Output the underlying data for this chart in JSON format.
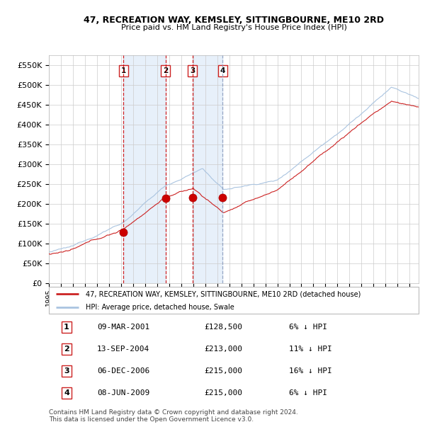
{
  "title": "47, RECREATION WAY, KEMSLEY, SITTINGBOURNE, ME10 2RD",
  "subtitle": "Price paid vs. HM Land Registry's House Price Index (HPI)",
  "footer": "Contains HM Land Registry data © Crown copyright and database right 2024.\nThis data is licensed under the Open Government Licence v3.0.",
  "legend_property": "47, RECREATION WAY, KEMSLEY, SITTINGBOURNE, ME10 2RD (detached house)",
  "legend_hpi": "HPI: Average price, detached house, Swale",
  "transactions": [
    {
      "num": 1,
      "date": "09-MAR-2001",
      "price": 128500,
      "pct": "6% ↓ HPI",
      "decimal_date": 2001.19
    },
    {
      "num": 2,
      "date": "13-SEP-2004",
      "price": 213000,
      "pct": "11% ↓ HPI",
      "decimal_date": 2004.7
    },
    {
      "num": 3,
      "date": "06-DEC-2006",
      "price": 215000,
      "pct": "16% ↓ HPI",
      "decimal_date": 2006.93
    },
    {
      "num": 4,
      "date": "08-JUN-2009",
      "price": 215000,
      "pct": "6% ↓ HPI",
      "decimal_date": 2009.44
    }
  ],
  "ylim": [
    0,
    575000
  ],
  "xlim_start": 1995.0,
  "xlim_end": 2025.75,
  "background_color": "#ffffff",
  "grid_color": "#cccccc",
  "hpi_line_color": "#aac4e0",
  "property_line_color": "#cc2222",
  "marker_color": "#cc0000",
  "yticks": [
    0,
    50000,
    100000,
    150000,
    200000,
    250000,
    300000,
    350000,
    400000,
    450000,
    500000,
    550000
  ],
  "ytick_labels": [
    "£0",
    "£50K",
    "£100K",
    "£150K",
    "£200K",
    "£250K",
    "£300K",
    "£350K",
    "£400K",
    "£450K",
    "£500K",
    "£550K"
  ],
  "xtick_years": [
    1995,
    1996,
    1997,
    1998,
    1999,
    2000,
    2001,
    2002,
    2003,
    2004,
    2005,
    2006,
    2007,
    2008,
    2009,
    2010,
    2011,
    2012,
    2013,
    2014,
    2015,
    2016,
    2017,
    2018,
    2019,
    2020,
    2021,
    2022,
    2023,
    2024,
    2025
  ],
  "table_rows": [
    [
      "1",
      "09-MAR-2001",
      "£128,500",
      "6% ↓ HPI"
    ],
    [
      "2",
      "13-SEP-2004",
      "£213,000",
      "11% ↓ HPI"
    ],
    [
      "3",
      "06-DEC-2006",
      "£215,000",
      "16% ↓ HPI"
    ],
    [
      "4",
      "08-JUN-2009",
      "£215,000",
      "6% ↓ HPI"
    ]
  ]
}
